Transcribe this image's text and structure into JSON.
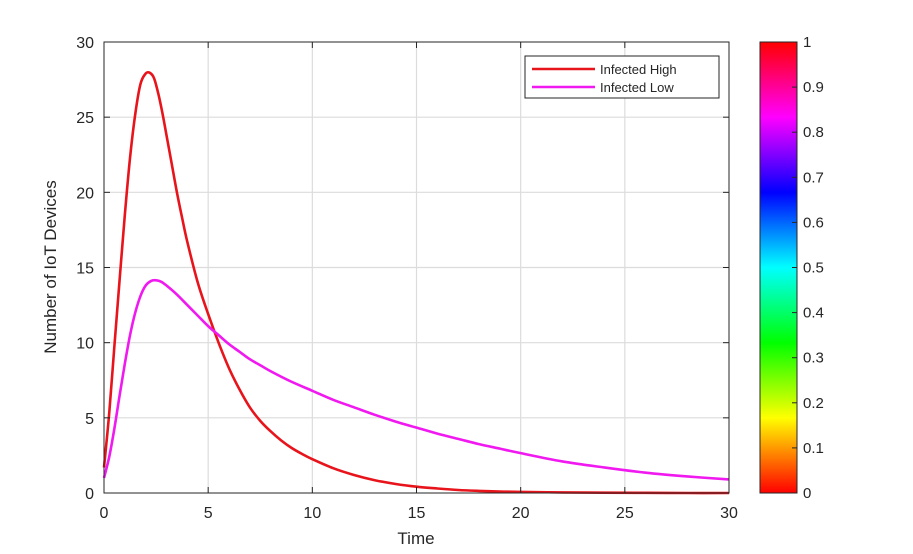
{
  "chart_data": {
    "type": "line",
    "title": "",
    "xlabel": "Time",
    "ylabel": "Number of IoT  Devices",
    "xlim": [
      0,
      30
    ],
    "ylim": [
      0,
      30
    ],
    "xticks": [
      0,
      5,
      10,
      15,
      20,
      25,
      30
    ],
    "yticks": [
      0,
      5,
      10,
      15,
      20,
      25,
      30
    ],
    "grid": true,
    "legend_position": "top-right",
    "series": [
      {
        "name": "Infected High",
        "color": "#e8141b",
        "x": [
          0,
          0.25,
          0.5,
          0.75,
          1,
          1.25,
          1.5,
          1.75,
          2,
          2.2,
          2.4,
          2.6,
          2.8,
          3,
          3.25,
          3.5,
          3.75,
          4,
          4.5,
          5,
          5.5,
          6,
          6.5,
          7,
          7.5,
          8,
          8.5,
          9,
          9.5,
          10,
          11,
          12,
          13,
          14,
          15,
          16,
          17,
          18,
          19,
          20,
          22,
          24,
          26,
          28,
          30
        ],
        "y": [
          1.7,
          5.3,
          9.8,
          14.2,
          18.5,
          22.3,
          25.2,
          27.2,
          27.9,
          27.95,
          27.6,
          26.6,
          25.3,
          23.8,
          21.9,
          20.0,
          18.3,
          16.7,
          14.0,
          11.9,
          10.0,
          8.3,
          6.9,
          5.7,
          4.8,
          4.1,
          3.5,
          3.0,
          2.6,
          2.25,
          1.65,
          1.2,
          0.85,
          0.6,
          0.42,
          0.3,
          0.2,
          0.14,
          0.1,
          0.07,
          0.04,
          0.02,
          0.01,
          0.0,
          0.0
        ]
      },
      {
        "name": "Infected Low",
        "color": "#f019f0",
        "x": [
          0,
          0.25,
          0.5,
          0.75,
          1,
          1.25,
          1.5,
          1.75,
          2,
          2.25,
          2.5,
          2.75,
          3,
          3.5,
          4,
          4.5,
          5,
          5.5,
          6,
          6.5,
          7,
          7.5,
          8,
          9,
          10,
          11,
          12,
          13,
          14,
          15,
          16,
          17,
          18,
          19,
          20,
          22,
          24,
          26,
          28,
          30
        ],
        "y": [
          1.0,
          2.4,
          4.3,
          6.5,
          8.6,
          10.5,
          12.0,
          13.1,
          13.8,
          14.1,
          14.15,
          14.05,
          13.8,
          13.2,
          12.5,
          11.8,
          11.1,
          10.5,
          9.9,
          9.4,
          8.9,
          8.5,
          8.1,
          7.4,
          6.8,
          6.2,
          5.7,
          5.2,
          4.75,
          4.35,
          3.95,
          3.6,
          3.25,
          2.95,
          2.65,
          2.1,
          1.7,
          1.35,
          1.1,
          0.9
        ]
      }
    ],
    "colorbar": {
      "range": [
        0,
        1
      ],
      "ticks": [
        "0",
        "0.1",
        "0.2",
        "0.3",
        "0.4",
        "0.5",
        "0.6",
        "0.7",
        "0.8",
        "0.9",
        "1"
      ],
      "colormap": [
        "#ff0000",
        "#ff8000",
        "#ffff00",
        "#80ff00",
        "#00ff00",
        "#00ff80",
        "#00ffff",
        "#0080ff",
        "#0000ff",
        "#8000ff",
        "#ff00ff",
        "#ff0080",
        "#ff0000"
      ]
    }
  }
}
